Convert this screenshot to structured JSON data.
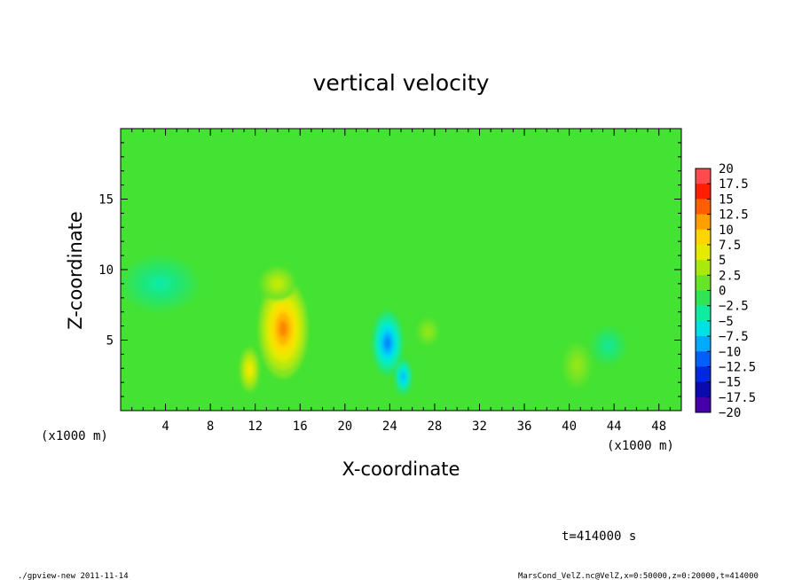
{
  "chart_data": {
    "type": "heatmap",
    "title": "vertical velocity",
    "xlabel": "X-coordinate",
    "ylabel": "Z-coordinate",
    "x_unit_left": "(x1000 m)",
    "x_unit_right": "(x1000 m)",
    "xlim": [
      0,
      50
    ],
    "ylim": [
      0,
      20
    ],
    "x_ticks": [
      4,
      8,
      12,
      16,
      20,
      24,
      28,
      32,
      36,
      40,
      44,
      48
    ],
    "y_ticks": [
      5,
      10,
      15
    ],
    "colorbar": {
      "levels": [
        "20",
        "17.5",
        "15",
        "12.5",
        "10",
        "7.5",
        "5",
        "2.5",
        "0",
        "−2.5",
        "−5",
        "−7.5",
        "−10",
        "−12.5",
        "−15",
        "−17.5",
        "−20"
      ],
      "range": [
        -20,
        20
      ]
    },
    "features": [
      {
        "x": 14.5,
        "z": 5.8,
        "value": 14.5
      },
      {
        "x": 11.5,
        "z": 2.9,
        "value": 9
      },
      {
        "x": 14.0,
        "z": 9.0,
        "value": 6
      },
      {
        "x": 23.8,
        "z": 4.8,
        "value": -12
      },
      {
        "x": 25.2,
        "z": 2.4,
        "value": -10
      },
      {
        "x": 27.4,
        "z": 5.6,
        "value": 3.5
      },
      {
        "x": 3.5,
        "z": 9.0,
        "value": -4.5
      },
      {
        "x": 40.7,
        "z": 3.2,
        "value": 3.5
      },
      {
        "x": 43.5,
        "z": 4.6,
        "value": -4
      }
    ],
    "time_label": "t=414000 s"
  },
  "footer": {
    "left": "./gpview-new  2011-11-14",
    "right": "MarsCond_VelZ.nc@VelZ,x=0:50000,z=0:20000,t=414000"
  }
}
